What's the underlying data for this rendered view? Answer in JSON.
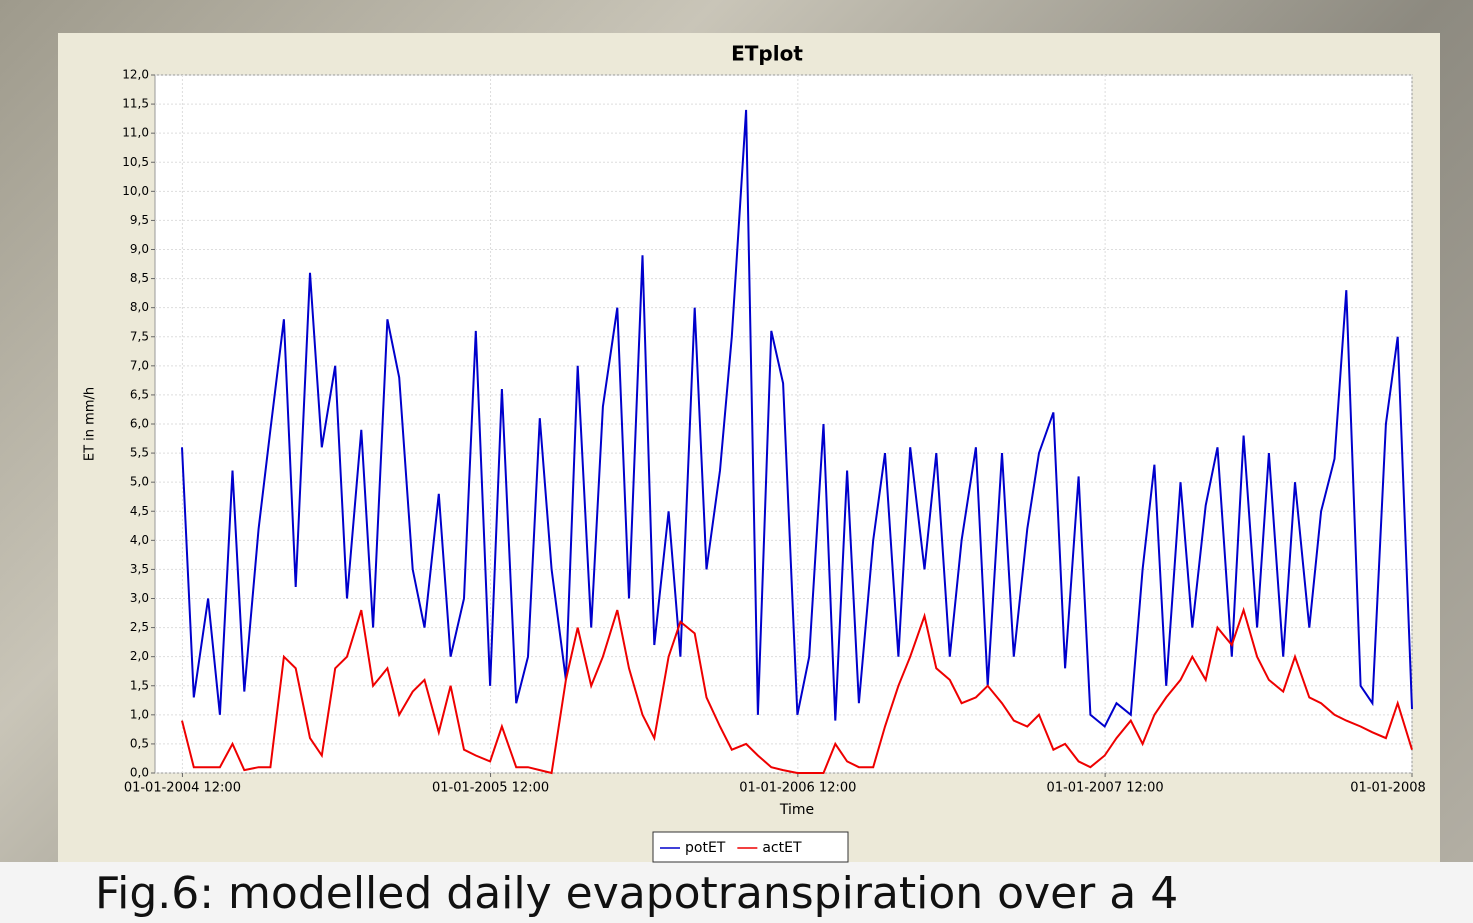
{
  "chart_data": {
    "type": "line",
    "title": "ETplot",
    "xlabel": "Time",
    "ylabel": "ET in mm/h",
    "caption": "Fig.6: modelled daily evapotranspiration over a 4",
    "x": [
      "2004-01-01",
      "2004-01-15",
      "2004-02-01",
      "2004-02-15",
      "2004-03-01",
      "2004-03-15",
      "2004-04-01",
      "2004-04-15",
      "2004-05-01",
      "2004-05-15",
      "2004-06-01",
      "2004-06-15",
      "2004-07-01",
      "2004-07-15",
      "2004-08-01",
      "2004-08-15",
      "2004-09-01",
      "2004-09-15",
      "2004-10-01",
      "2004-10-15",
      "2004-11-01",
      "2004-11-15",
      "2004-12-01",
      "2004-12-15",
      "2005-01-01",
      "2005-01-15",
      "2005-02-01",
      "2005-02-15",
      "2005-03-01",
      "2005-03-15",
      "2005-04-01",
      "2005-04-15",
      "2005-05-01",
      "2005-05-15",
      "2005-06-01",
      "2005-06-15",
      "2005-07-01",
      "2005-07-15",
      "2005-08-01",
      "2005-08-15",
      "2005-09-01",
      "2005-09-15",
      "2005-10-01",
      "2005-10-15",
      "2005-11-01",
      "2005-11-15",
      "2005-12-01",
      "2005-12-15",
      "2006-01-01",
      "2006-01-15",
      "2006-02-01",
      "2006-02-15",
      "2006-03-01",
      "2006-03-15",
      "2006-04-01",
      "2006-04-15",
      "2006-05-01",
      "2006-05-15",
      "2006-06-01",
      "2006-06-15",
      "2006-07-01",
      "2006-07-15",
      "2006-08-01",
      "2006-08-15",
      "2006-09-01",
      "2006-09-15",
      "2006-10-01",
      "2006-10-15",
      "2006-11-01",
      "2006-11-15",
      "2006-12-01",
      "2006-12-15",
      "2007-01-01",
      "2007-01-15",
      "2007-02-01",
      "2007-02-15",
      "2007-03-01",
      "2007-03-15",
      "2007-04-01",
      "2007-04-15",
      "2007-05-01",
      "2007-05-15",
      "2007-06-01",
      "2007-06-15",
      "2007-07-01",
      "2007-07-15",
      "2007-08-01",
      "2007-08-15",
      "2007-09-01",
      "2007-09-15",
      "2007-10-01",
      "2007-10-15",
      "2007-11-01",
      "2007-11-15",
      "2007-12-01",
      "2007-12-15",
      "2008-01-01"
    ],
    "series": [
      {
        "name": "potET",
        "color": "#0000cc",
        "values": [
          5.6,
          1.3,
          3.0,
          1.0,
          5.2,
          1.4,
          4.2,
          5.9,
          7.8,
          3.2,
          8.6,
          5.6,
          7.0,
          3.0,
          5.9,
          2.5,
          7.8,
          6.8,
          3.5,
          2.5,
          4.8,
          2.0,
          3.0,
          7.6,
          1.5,
          6.6,
          1.2,
          2.0,
          6.1,
          3.5,
          1.6,
          7.0,
          2.5,
          6.3,
          8.0,
          3.0,
          8.9,
          2.2,
          4.5,
          2.0,
          8.0,
          3.5,
          5.2,
          7.5,
          11.4,
          1.0,
          7.6,
          6.7,
          1.0,
          2.0,
          6.0,
          0.9,
          5.2,
          1.2,
          4.0,
          5.5,
          2.0,
          5.6,
          3.5,
          5.5,
          2.0,
          4.0,
          5.6,
          1.5,
          5.5,
          2.0,
          4.2,
          5.5,
          6.2,
          1.8,
          5.1,
          1.0,
          0.8,
          1.2,
          1.0,
          3.5,
          5.3,
          1.5,
          5.0,
          2.5,
          4.6,
          5.6,
          2.0,
          5.8,
          2.5,
          5.5,
          2.0,
          5.0,
          2.5,
          4.5,
          5.4,
          8.3,
          1.5,
          1.2,
          6.0,
          7.5,
          1.1
        ]
      },
      {
        "name": "actET",
        "color": "#ee0000",
        "values": [
          0.9,
          0.1,
          0.1,
          0.1,
          0.5,
          0.05,
          0.1,
          0.1,
          2.0,
          1.8,
          0.6,
          0.3,
          1.8,
          2.0,
          2.8,
          1.5,
          1.8,
          1.0,
          1.4,
          1.6,
          0.7,
          1.5,
          0.4,
          0.3,
          0.2,
          0.8,
          0.1,
          0.1,
          0.05,
          0.0,
          1.6,
          2.5,
          1.5,
          2.0,
          2.8,
          1.8,
          1.0,
          0.6,
          2.0,
          2.6,
          2.4,
          1.3,
          0.8,
          0.4,
          0.5,
          0.3,
          0.1,
          0.05,
          0.0,
          0.0,
          0.0,
          0.5,
          0.2,
          0.1,
          0.1,
          0.8,
          1.5,
          2.0,
          2.7,
          1.8,
          1.6,
          1.2,
          1.3,
          1.5,
          1.2,
          0.9,
          0.8,
          1.0,
          0.4,
          0.5,
          0.2,
          0.1,
          0.3,
          0.6,
          0.9,
          0.5,
          1.0,
          1.3,
          1.6,
          2.0,
          1.6,
          2.5,
          2.2,
          2.8,
          2.0,
          1.6,
          1.4,
          2.0,
          1.3,
          1.2,
          1.0,
          0.9,
          0.8,
          0.7,
          0.6,
          1.2,
          0.4
        ]
      }
    ],
    "xlim": [
      "2004-01-01",
      "2008-01-01"
    ],
    "xticks": [
      {
        "value": "2004-01-01T12:00",
        "label": "01-01-2004 12:00"
      },
      {
        "value": "2005-01-01T12:00",
        "label": "01-01-2005 12:00"
      },
      {
        "value": "2006-01-01T12:00",
        "label": "01-01-2006 12:00"
      },
      {
        "value": "2007-01-01T12:00",
        "label": "01-01-2007 12:00"
      },
      {
        "value": "2008-01-01",
        "label": "01-01-2008"
      }
    ],
    "ylim": [
      0,
      12
    ],
    "yticks": [
      {
        "value": 0,
        "label": "0,0"
      },
      {
        "value": 0.5,
        "label": "0,5"
      },
      {
        "value": 1,
        "label": "1,0"
      },
      {
        "value": 1.5,
        "label": "1,5"
      },
      {
        "value": 2,
        "label": "2,0"
      },
      {
        "value": 2.5,
        "label": "2,5"
      },
      {
        "value": 3,
        "label": "3,0"
      },
      {
        "value": 3.5,
        "label": "3,5"
      },
      {
        "value": 4,
        "label": "4,0"
      },
      {
        "value": 4.5,
        "label": "4,5"
      },
      {
        "value": 5,
        "label": "5,0"
      },
      {
        "value": 5.5,
        "label": "5,5"
      },
      {
        "value": 6,
        "label": "6,0"
      },
      {
        "value": 6.5,
        "label": "6,5"
      },
      {
        "value": 7,
        "label": "7,0"
      },
      {
        "value": 7.5,
        "label": "7,5"
      },
      {
        "value": 8,
        "label": "8,0"
      },
      {
        "value": 8.5,
        "label": "8,5"
      },
      {
        "value": 9,
        "label": "9,0"
      },
      {
        "value": 9.5,
        "label": "9,5"
      },
      {
        "value": 10,
        "label": "10,0"
      },
      {
        "value": 10.5,
        "label": "10,5"
      },
      {
        "value": 11,
        "label": "11,0"
      },
      {
        "value": 11.5,
        "label": "11,5"
      },
      {
        "value": 12,
        "label": "12,0"
      }
    ],
    "grid": true,
    "legend": "bottom"
  }
}
